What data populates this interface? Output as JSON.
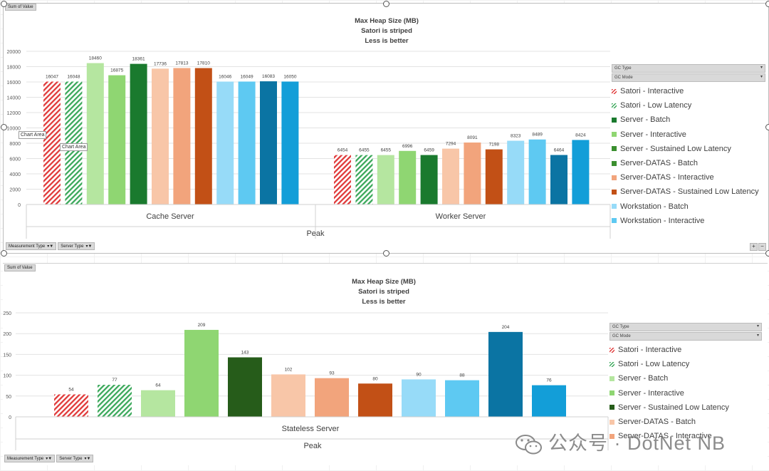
{
  "colors": {
    "satori_interactive": "#e03a3a",
    "satori_low_latency": "#3aa85a",
    "server_batch_top": "#1a7a2e",
    "server_batch_bottom": "#b5e6a0",
    "server_interactive": "#8fd672",
    "server_sustained_top": "#3b8f2f",
    "server_sustained_bottom": "#265c1a",
    "datas_batch": "#f8c6a8",
    "datas_interactive": "#f2a47c",
    "datas_sustained": "#c25016",
    "ws_batch": "#97dbf8",
    "ws_interactive": "#5ec9f2",
    "ws_sustained": "#0b74a3",
    "ws_other": "#139ed8"
  },
  "ui": {
    "sum_of_value": "Sum of Value",
    "gc_type": "GC Type",
    "gc_mode": "GC Mode",
    "measurement_type": "Measurement Type",
    "server_type": "Server Type",
    "tooltip_1": "Chart Area",
    "tooltip_2": "Chart Area",
    "zoom_plus": "+",
    "zoom_minus": "−",
    "watermark": "公众号 · DotNet NB"
  },
  "chart_data": [
    {
      "type": "bar",
      "title": "Max Heap Size (MB)",
      "subtitle_1": "Satori is striped",
      "subtitle_2": "Less is better",
      "ylim": [
        0,
        20000
      ],
      "yticks": [
        "0",
        "2000",
        "4000",
        "6000",
        "8000",
        "10000",
        "12000",
        "14000",
        "16000",
        "18000",
        "20000"
      ],
      "axis_category": "Peak",
      "groups": [
        {
          "label": "Cache Server",
          "values": [
            16047,
            16048,
            18460,
            16875,
            18361,
            17736,
            17813,
            17810,
            16046,
            16049,
            16083,
            16050
          ]
        },
        {
          "label": "Worker Server",
          "values": [
            6454,
            6455,
            6455,
            6996,
            6459,
            7294,
            8091,
            7198,
            8323,
            8489,
            6464,
            8424
          ]
        }
      ],
      "bar_colors": [
        "satori_interactive",
        "satori_low_latency",
        "server_batch_bottom",
        "server_interactive",
        "server_batch_top",
        "datas_batch",
        "datas_interactive",
        "datas_sustained",
        "ws_batch",
        "ws_interactive",
        "ws_sustained",
        "ws_other"
      ],
      "bar_hatch": [
        true,
        true,
        false,
        false,
        false,
        false,
        false,
        false,
        false,
        false,
        false,
        false
      ],
      "legend": [
        {
          "label": "Satori - Interactive",
          "color": "satori_interactive",
          "hatch": true
        },
        {
          "label": "Satori - Low Latency",
          "color": "satori_low_latency",
          "hatch": true
        },
        {
          "label": "Server - Batch",
          "color": "server_batch_top",
          "hatch": false
        },
        {
          "label": "Server - Interactive",
          "color": "server_interactive",
          "hatch": false
        },
        {
          "label": "Server - Sustained Low Latency",
          "color": "server_sustained_top",
          "hatch": false
        },
        {
          "label": "Server-DATAS - Batch",
          "color": "server_sustained_top",
          "hatch": false
        },
        {
          "label": "Server-DATAS - Interactive",
          "color": "datas_interactive",
          "hatch": false
        },
        {
          "label": "Server-DATAS - Sustained Low Latency",
          "color": "datas_sustained",
          "hatch": false
        },
        {
          "label": "Workstation - Batch",
          "color": "ws_batch",
          "hatch": false
        },
        {
          "label": "Workstation - Interactive",
          "color": "ws_interactive",
          "hatch": false
        }
      ]
    },
    {
      "type": "bar",
      "title": "Max Heap Size (MB)",
      "subtitle_1": "Satori is striped",
      "subtitle_2": "Less is better",
      "ylim": [
        0,
        250
      ],
      "yticks": [
        "0",
        "50",
        "100",
        "150",
        "200",
        "250"
      ],
      "axis_category": "Peak",
      "groups": [
        {
          "label": "Stateless Server",
          "values": [
            54,
            77,
            64,
            209,
            143,
            102,
            93,
            80,
            90,
            88,
            204,
            76
          ]
        }
      ],
      "bar_colors": [
        "satori_interactive",
        "satori_low_latency",
        "server_batch_bottom",
        "server_interactive",
        "server_sustained_bottom",
        "datas_batch",
        "datas_interactive",
        "datas_sustained",
        "ws_batch",
        "ws_interactive",
        "ws_sustained",
        "ws_other"
      ],
      "bar_hatch": [
        true,
        true,
        false,
        false,
        false,
        false,
        false,
        false,
        false,
        false,
        false,
        false
      ],
      "legend": [
        {
          "label": "Satori - Interactive",
          "color": "satori_interactive",
          "hatch": true
        },
        {
          "label": "Satori - Low Latency",
          "color": "satori_low_latency",
          "hatch": true
        },
        {
          "label": "Server - Batch",
          "color": "server_batch_bottom",
          "hatch": false
        },
        {
          "label": "Server - Interactive",
          "color": "server_interactive",
          "hatch": false
        },
        {
          "label": "Server - Sustained Low Latency",
          "color": "server_sustained_bottom",
          "hatch": false
        },
        {
          "label": "Server-DATAS - Batch",
          "color": "datas_batch",
          "hatch": false
        },
        {
          "label": "Server-DATAS - Interactive",
          "color": "datas_interactive",
          "hatch": false
        }
      ]
    }
  ]
}
